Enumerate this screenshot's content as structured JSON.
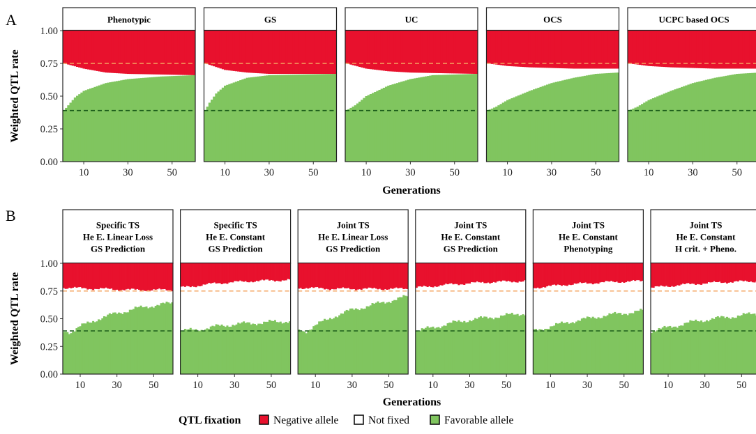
{
  "colors": {
    "negative": "#e8112d",
    "favorable": "#80c55f",
    "notfixed": "#ffffff",
    "ref_high": "#f4a460",
    "ref_low": "#1a5c1a",
    "frame": "#222222"
  },
  "legend": {
    "title": "QTL fixation",
    "items": [
      "Negative allele",
      "Not fixed",
      "Favorable allele"
    ]
  },
  "chart_data": [
    {
      "panel": "A",
      "type": "area",
      "xlabel": "Generations",
      "ylabel": "Weighted QTL rate",
      "xlim": [
        1,
        60
      ],
      "ylim": [
        0,
        1
      ],
      "xticks": [
        10,
        30,
        50
      ],
      "yticks": [
        "0.00",
        "0.25",
        "0.50",
        "0.75",
        "1.00"
      ],
      "reference_lines": [
        0.75,
        0.39
      ],
      "facets": [
        {
          "title": [
            "Phenotypic"
          ],
          "favorable_keypoints": [
            [
              1,
              0.39
            ],
            [
              3,
              0.43
            ],
            [
              6,
              0.49
            ],
            [
              10,
              0.54
            ],
            [
              20,
              0.6
            ],
            [
              30,
              0.63
            ],
            [
              45,
              0.65
            ],
            [
              60,
              0.66
            ]
          ],
          "negative_keypoints": [
            [
              1,
              0.25
            ],
            [
              10,
              0.29
            ],
            [
              20,
              0.32
            ],
            [
              30,
              0.33
            ],
            [
              60,
              0.34
            ]
          ]
        },
        {
          "title": [
            "GS"
          ],
          "favorable_keypoints": [
            [
              1,
              0.39
            ],
            [
              3,
              0.45
            ],
            [
              6,
              0.52
            ],
            [
              10,
              0.58
            ],
            [
              20,
              0.64
            ],
            [
              30,
              0.66
            ],
            [
              60,
              0.67
            ]
          ],
          "negative_keypoints": [
            [
              1,
              0.25
            ],
            [
              10,
              0.3
            ],
            [
              20,
              0.32
            ],
            [
              30,
              0.33
            ],
            [
              60,
              0.33
            ]
          ]
        },
        {
          "title": [
            "UC"
          ],
          "favorable_keypoints": [
            [
              1,
              0.39
            ],
            [
              5,
              0.43
            ],
            [
              10,
              0.5
            ],
            [
              20,
              0.58
            ],
            [
              30,
              0.63
            ],
            [
              40,
              0.66
            ],
            [
              60,
              0.67
            ]
          ],
          "negative_keypoints": [
            [
              1,
              0.25
            ],
            [
              10,
              0.29
            ],
            [
              20,
              0.31
            ],
            [
              30,
              0.32
            ],
            [
              60,
              0.33
            ]
          ]
        },
        {
          "title": [
            "OCS"
          ],
          "favorable_keypoints": [
            [
              1,
              0.39
            ],
            [
              5,
              0.42
            ],
            [
              10,
              0.47
            ],
            [
              20,
              0.54
            ],
            [
              30,
              0.6
            ],
            [
              40,
              0.64
            ],
            [
              50,
              0.67
            ],
            [
              60,
              0.68
            ]
          ],
          "negative_keypoints": [
            [
              1,
              0.25
            ],
            [
              10,
              0.27
            ],
            [
              20,
              0.28
            ],
            [
              40,
              0.29
            ],
            [
              60,
              0.29
            ]
          ]
        },
        {
          "title": [
            "UCPC based OCS"
          ],
          "favorable_keypoints": [
            [
              1,
              0.39
            ],
            [
              5,
              0.42
            ],
            [
              10,
              0.47
            ],
            [
              20,
              0.54
            ],
            [
              30,
              0.6
            ],
            [
              40,
              0.64
            ],
            [
              50,
              0.67
            ],
            [
              60,
              0.68
            ]
          ],
          "negative_keypoints": [
            [
              1,
              0.25
            ],
            [
              10,
              0.27
            ],
            [
              20,
              0.28
            ],
            [
              40,
              0.29
            ],
            [
              60,
              0.29
            ]
          ]
        }
      ]
    },
    {
      "panel": "B",
      "type": "area",
      "xlabel": "Generations",
      "ylabel": "Weighted QTL rate",
      "xlim": [
        1,
        60
      ],
      "ylim": [
        0,
        1
      ],
      "xticks": [
        10,
        30,
        50
      ],
      "yticks": [
        "0.00",
        "0.25",
        "0.50",
        "0.75",
        "1.00"
      ],
      "reference_lines": [
        0.75,
        0.39
      ],
      "facets": [
        {
          "title": [
            "Specific TS",
            "He E. Linear Loss",
            "GS Prediction"
          ],
          "favorable_keypoints": [
            [
              1,
              0.39
            ],
            [
              5,
              0.38
            ],
            [
              10,
              0.43
            ],
            [
              20,
              0.5
            ],
            [
              30,
              0.55
            ],
            [
              40,
              0.59
            ],
            [
              50,
              0.62
            ],
            [
              60,
              0.64
            ]
          ],
          "negative_keypoints": [
            [
              1,
              0.22
            ],
            [
              20,
              0.23
            ],
            [
              40,
              0.24
            ],
            [
              60,
              0.24
            ]
          ]
        },
        {
          "title": [
            "Specific TS",
            "He E. Constant",
            "GS Prediction"
          ],
          "favorable_keypoints": [
            [
              1,
              0.39
            ],
            [
              10,
              0.4
            ],
            [
              20,
              0.43
            ],
            [
              30,
              0.45
            ],
            [
              40,
              0.46
            ],
            [
              50,
              0.47
            ],
            [
              60,
              0.48
            ]
          ],
          "negative_keypoints": [
            [
              1,
              0.22
            ],
            [
              20,
              0.18
            ],
            [
              40,
              0.16
            ],
            [
              60,
              0.15
            ]
          ]
        },
        {
          "title": [
            "Joint TS",
            "He E. Linear Loss",
            "GS Prediction"
          ],
          "favorable_keypoints": [
            [
              1,
              0.39
            ],
            [
              5,
              0.39
            ],
            [
              10,
              0.44
            ],
            [
              20,
              0.52
            ],
            [
              30,
              0.58
            ],
            [
              40,
              0.62
            ],
            [
              50,
              0.66
            ],
            [
              60,
              0.7
            ]
          ],
          "negative_keypoints": [
            [
              1,
              0.22
            ],
            [
              20,
              0.23
            ],
            [
              40,
              0.23
            ],
            [
              60,
              0.23
            ]
          ]
        },
        {
          "title": [
            "Joint TS",
            "He E. Constant",
            "GS Prediction"
          ],
          "favorable_keypoints": [
            [
              1,
              0.39
            ],
            [
              10,
              0.42
            ],
            [
              20,
              0.46
            ],
            [
              30,
              0.49
            ],
            [
              40,
              0.51
            ],
            [
              50,
              0.53
            ],
            [
              60,
              0.55
            ]
          ],
          "negative_keypoints": [
            [
              1,
              0.22
            ],
            [
              20,
              0.19
            ],
            [
              40,
              0.17
            ],
            [
              60,
              0.16
            ]
          ]
        },
        {
          "title": [
            "Joint TS",
            "He E. Constant",
            "Phenotyping"
          ],
          "favorable_keypoints": [
            [
              1,
              0.39
            ],
            [
              10,
              0.43
            ],
            [
              20,
              0.47
            ],
            [
              30,
              0.5
            ],
            [
              40,
              0.53
            ],
            [
              50,
              0.55
            ],
            [
              60,
              0.57
            ]
          ],
          "negative_keypoints": [
            [
              1,
              0.22
            ],
            [
              20,
              0.19
            ],
            [
              40,
              0.17
            ],
            [
              60,
              0.16
            ]
          ]
        },
        {
          "title": [
            "Joint TS",
            "He E. Constant",
            "H crit. + Pheno."
          ],
          "favorable_keypoints": [
            [
              1,
              0.39
            ],
            [
              10,
              0.42
            ],
            [
              20,
              0.46
            ],
            [
              30,
              0.49
            ],
            [
              40,
              0.51
            ],
            [
              50,
              0.53
            ],
            [
              60,
              0.55
            ]
          ],
          "negative_keypoints": [
            [
              1,
              0.22
            ],
            [
              20,
              0.19
            ],
            [
              40,
              0.17
            ],
            [
              60,
              0.16
            ]
          ]
        }
      ]
    }
  ]
}
